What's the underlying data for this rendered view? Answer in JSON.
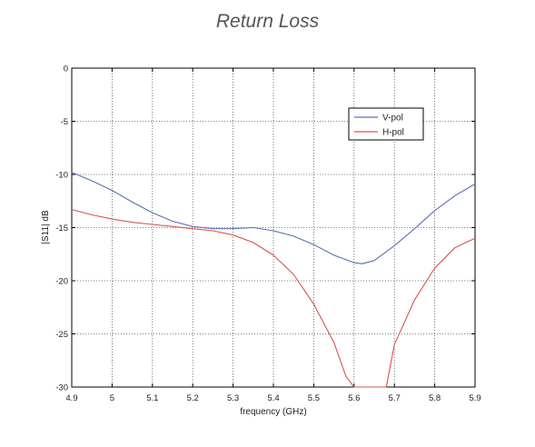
{
  "chart_data": {
    "type": "line",
    "title": "Return Loss",
    "xlabel": "frequency (GHz)",
    "ylabel": "|S11| dB",
    "xlim": [
      4.9,
      5.9
    ],
    "ylim": [
      -30,
      0
    ],
    "xticks": [
      "4.9",
      "5",
      "5.1",
      "5.2",
      "5.3",
      "5.4",
      "5.5",
      "5.6",
      "5.7",
      "5.8",
      "5.9"
    ],
    "yticks": [
      "0",
      "-5",
      "-10",
      "-15",
      "-20",
      "-25",
      "-30"
    ],
    "grid": true,
    "legend_position": "top-right",
    "series": [
      {
        "name": "V-pol",
        "color": "#5b6fb5",
        "x": [
          4.9,
          4.95,
          5.0,
          5.05,
          5.1,
          5.15,
          5.2,
          5.25,
          5.3,
          5.35,
          5.4,
          5.45,
          5.5,
          5.55,
          5.6,
          5.62,
          5.65,
          5.7,
          5.75,
          5.8,
          5.85,
          5.9
        ],
        "y": [
          -9.8,
          -10.6,
          -11.5,
          -12.6,
          -13.6,
          -14.4,
          -14.9,
          -15.1,
          -15.1,
          -15.0,
          -15.3,
          -15.8,
          -16.6,
          -17.6,
          -18.3,
          -18.4,
          -18.1,
          -16.7,
          -15.1,
          -13.4,
          -12.0,
          -10.9
        ]
      },
      {
        "name": "H-pol",
        "color": "#d9534f",
        "x": [
          4.9,
          4.95,
          5.0,
          5.05,
          5.1,
          5.15,
          5.2,
          5.25,
          5.3,
          5.35,
          5.4,
          5.45,
          5.5,
          5.55,
          5.58,
          5.6,
          5.68,
          5.7,
          5.75,
          5.8,
          5.85,
          5.9
        ],
        "y": [
          -13.3,
          -13.8,
          -14.2,
          -14.5,
          -14.7,
          -14.9,
          -15.1,
          -15.3,
          -15.7,
          -16.4,
          -17.6,
          -19.4,
          -22.2,
          -25.8,
          -29.0,
          -30.0,
          -30.0,
          -26.0,
          -21.8,
          -18.8,
          -16.9,
          -16.0
        ]
      }
    ]
  }
}
